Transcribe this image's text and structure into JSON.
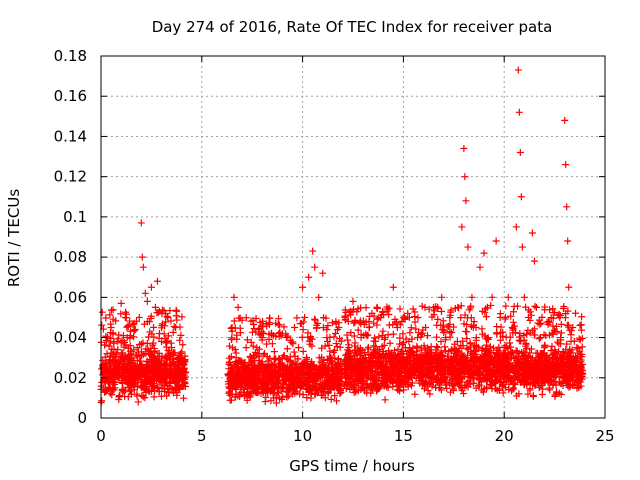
{
  "chart_data": {
    "type": "scatter",
    "title": "Day 274 of 2016, Rate Of TEC Index for receiver pata",
    "xlabel": "GPS time / hours",
    "ylabel": "ROTI / TECUs",
    "xlim": [
      0,
      25
    ],
    "ylim": [
      0,
      0.18
    ],
    "xticks": [
      0,
      5,
      10,
      15,
      20,
      25
    ],
    "yticks": [
      0,
      0.02,
      0.04,
      0.06,
      0.08,
      0.1,
      0.12,
      0.14,
      0.16,
      0.18
    ],
    "grid": true,
    "marker": "+",
    "color": "#ff0000",
    "series": [
      {
        "name": "ROTI",
        "points": [
          [
            0.1,
            0.025
          ],
          [
            0.2,
            0.018
          ],
          [
            0.3,
            0.032
          ],
          [
            0.4,
            0.022
          ],
          [
            0.5,
            0.045
          ],
          [
            0.6,
            0.028
          ],
          [
            0.7,
            0.015
          ],
          [
            0.8,
            0.038
          ],
          [
            0.9,
            0.02
          ],
          [
            1.0,
            0.057
          ],
          [
            1.1,
            0.03
          ],
          [
            1.2,
            0.024
          ],
          [
            1.3,
            0.04
          ],
          [
            1.4,
            0.019
          ],
          [
            1.5,
            0.033
          ],
          [
            1.6,
            0.027
          ],
          [
            1.7,
            0.044
          ],
          [
            1.8,
            0.035
          ],
          [
            1.9,
            0.05
          ],
          [
            2.0,
            0.097
          ],
          [
            2.05,
            0.08
          ],
          [
            2.1,
            0.075
          ],
          [
            2.2,
            0.062
          ],
          [
            2.3,
            0.058
          ],
          [
            2.4,
            0.048
          ],
          [
            2.5,
            0.065
          ],
          [
            2.6,
            0.03
          ],
          [
            2.7,
            0.055
          ],
          [
            2.8,
            0.068
          ],
          [
            2.9,
            0.042
          ],
          [
            3.0,
            0.038
          ],
          [
            3.1,
            0.026
          ],
          [
            3.2,
            0.052
          ],
          [
            3.3,
            0.03
          ],
          [
            3.4,
            0.021
          ],
          [
            3.5,
            0.035
          ],
          [
            3.6,
            0.028
          ],
          [
            3.7,
            0.045
          ],
          [
            3.8,
            0.019
          ],
          [
            3.9,
            0.031
          ],
          [
            4.0,
            0.025
          ],
          [
            4.1,
            0.018
          ],
          [
            6.4,
            0.022
          ],
          [
            6.5,
            0.045
          ],
          [
            6.6,
            0.06
          ],
          [
            6.7,
            0.03
          ],
          [
            6.8,
            0.055
          ],
          [
            6.9,
            0.018
          ],
          [
            7.0,
            0.028
          ],
          [
            7.2,
            0.035
          ],
          [
            7.4,
            0.02
          ],
          [
            7.6,
            0.03
          ],
          [
            7.8,
            0.025
          ],
          [
            8.0,
            0.04
          ],
          [
            8.2,
            0.018
          ],
          [
            8.4,
            0.026
          ],
          [
            8.6,
            0.033
          ],
          [
            8.8,
            0.022
          ],
          [
            9.0,
            0.03
          ],
          [
            9.2,
            0.04
          ],
          [
            9.4,
            0.028
          ],
          [
            9.6,
            0.045
          ],
          [
            9.8,
            0.035
          ],
          [
            10.0,
            0.065
          ],
          [
            10.1,
            0.05
          ],
          [
            10.3,
            0.07
          ],
          [
            10.5,
            0.083
          ],
          [
            10.6,
            0.075
          ],
          [
            10.8,
            0.06
          ],
          [
            11.0,
            0.072
          ],
          [
            11.2,
            0.04
          ],
          [
            11.4,
            0.03
          ],
          [
            11.6,
            0.025
          ],
          [
            11.8,
            0.045
          ],
          [
            11.95,
            0.02
          ],
          [
            12.1,
            0.05
          ],
          [
            12.3,
            0.035
          ],
          [
            12.5,
            0.058
          ],
          [
            12.7,
            0.028
          ],
          [
            12.9,
            0.04
          ],
          [
            13.1,
            0.022
          ],
          [
            13.3,
            0.045
          ],
          [
            13.5,
            0.03
          ],
          [
            13.7,
            0.055
          ],
          [
            13.9,
            0.025
          ],
          [
            14.1,
            0.04
          ],
          [
            14.3,
            0.032
          ],
          [
            14.5,
            0.065
          ],
          [
            14.7,
            0.045
          ],
          [
            14.9,
            0.025
          ],
          [
            15.1,
            0.035
          ],
          [
            15.3,
            0.05
          ],
          [
            15.5,
            0.028
          ],
          [
            15.7,
            0.04
          ],
          [
            15.9,
            0.03
          ],
          [
            16.1,
            0.045
          ],
          [
            16.3,
            0.025
          ],
          [
            16.5,
            0.055
          ],
          [
            16.7,
            0.035
          ],
          [
            16.9,
            0.06
          ],
          [
            17.1,
            0.04
          ],
          [
            17.3,
            0.05
          ],
          [
            17.5,
            0.03
          ],
          [
            17.7,
            0.055
          ],
          [
            17.9,
            0.095
          ],
          [
            18.0,
            0.134
          ],
          [
            18.05,
            0.12
          ],
          [
            18.1,
            0.108
          ],
          [
            18.2,
            0.085
          ],
          [
            18.4,
            0.06
          ],
          [
            18.6,
            0.045
          ],
          [
            18.8,
            0.075
          ],
          [
            19.0,
            0.082
          ],
          [
            19.2,
            0.04
          ],
          [
            19.4,
            0.06
          ],
          [
            19.6,
            0.088
          ],
          [
            19.8,
            0.05
          ],
          [
            20.0,
            0.035
          ],
          [
            20.2,
            0.06
          ],
          [
            20.4,
            0.045
          ],
          [
            20.6,
            0.095
          ],
          [
            20.7,
            0.173
          ],
          [
            20.75,
            0.152
          ],
          [
            20.8,
            0.132
          ],
          [
            20.85,
            0.11
          ],
          [
            20.9,
            0.085
          ],
          [
            21.0,
            0.06
          ],
          [
            21.2,
            0.05
          ],
          [
            21.4,
            0.092
          ],
          [
            21.5,
            0.078
          ],
          [
            21.6,
            0.055
          ],
          [
            21.8,
            0.04
          ],
          [
            22.0,
            0.035
          ],
          [
            22.2,
            0.048
          ],
          [
            22.4,
            0.03
          ],
          [
            22.6,
            0.025
          ],
          [
            22.8,
            0.04
          ],
          [
            23.0,
            0.148
          ],
          [
            23.05,
            0.126
          ],
          [
            23.1,
            0.105
          ],
          [
            23.15,
            0.088
          ],
          [
            23.2,
            0.065
          ],
          [
            23.4,
            0.045
          ],
          [
            23.6,
            0.035
          ],
          [
            23.8,
            0.025
          ]
        ],
        "dense_bands": [
          {
            "x": [
              0.0,
              4.2
            ],
            "y": [
              0.006,
              0.036
            ]
          },
          {
            "x": [
              6.3,
              11.95
            ],
            "y": [
              0.006,
              0.032
            ]
          },
          {
            "x": [
              12.05,
              23.9
            ],
            "y": [
              0.008,
              0.038
            ]
          }
        ]
      }
    ]
  }
}
